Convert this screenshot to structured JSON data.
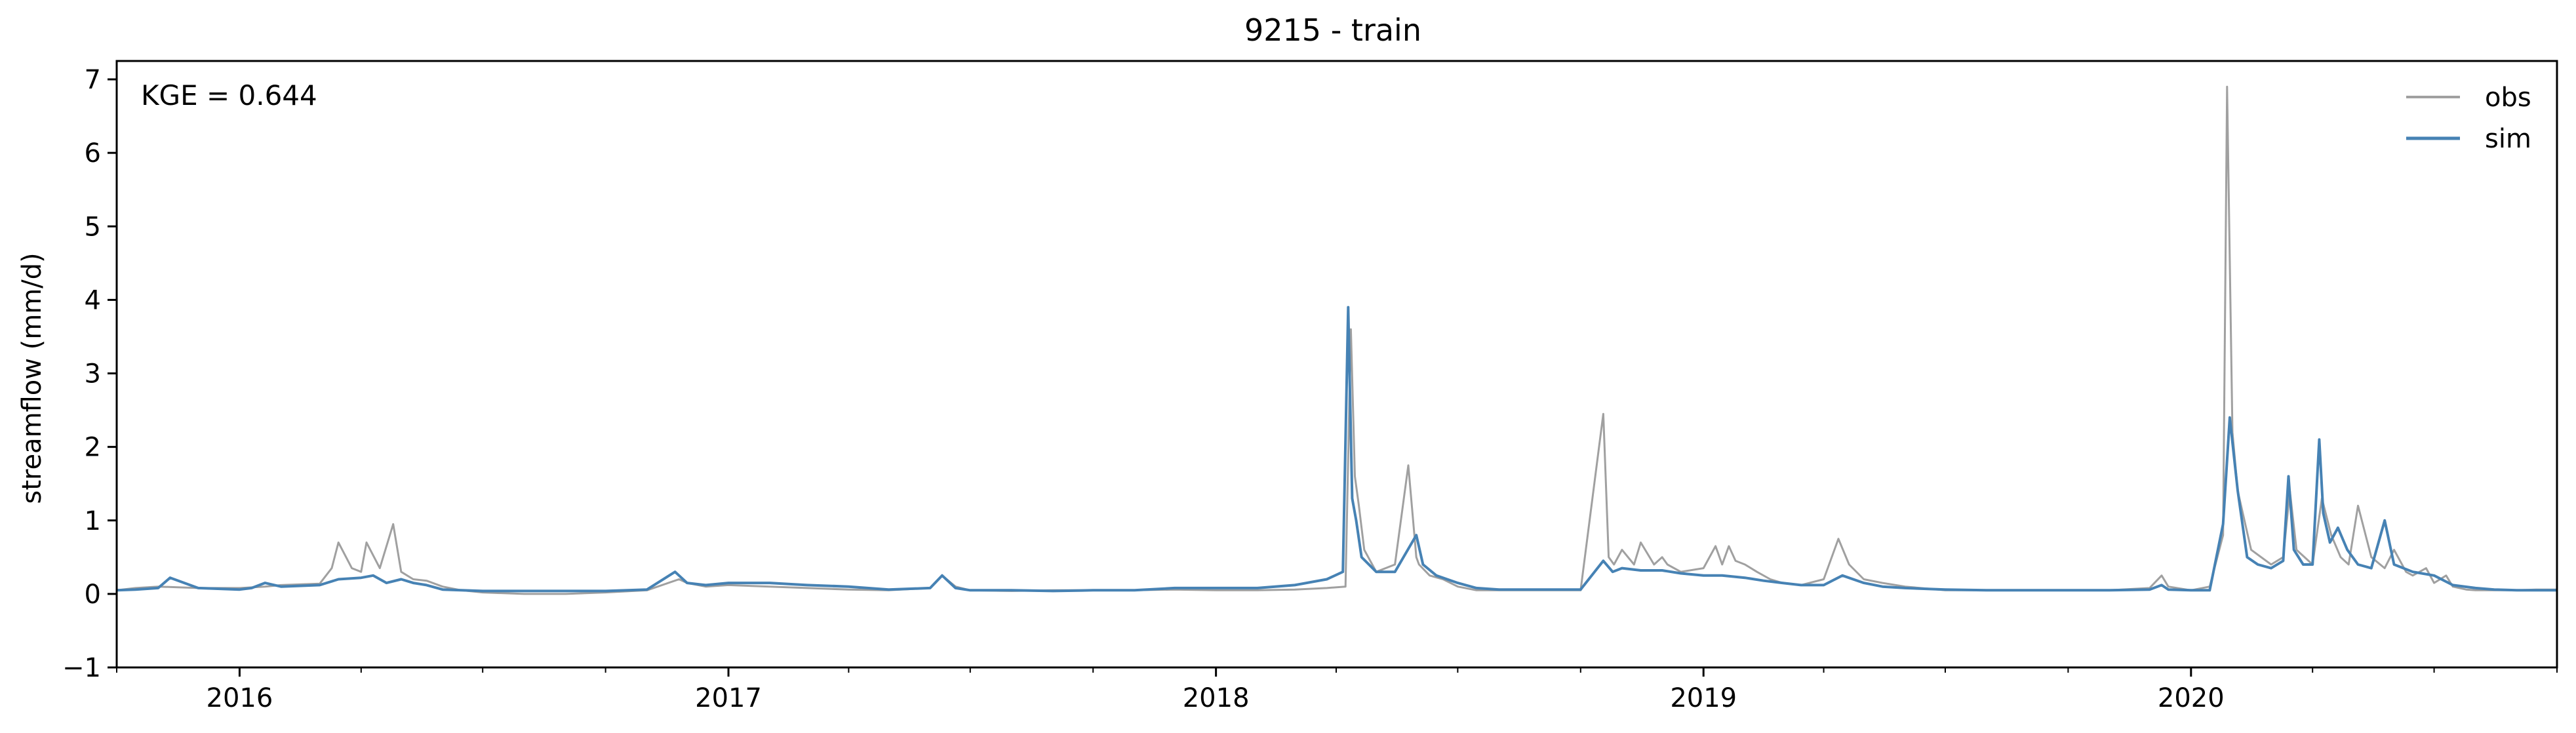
{
  "chart_data": {
    "type": "line",
    "title": "9215 - train",
    "xlabel": "",
    "ylabel": "streamflow (mm/d)",
    "annotation": "KGE = 0.644",
    "xlim": [
      "2015-10-01",
      "2020-10-01"
    ],
    "ylim": [
      -1,
      7.25
    ],
    "yticks": [
      -1,
      0,
      1,
      2,
      3,
      4,
      5,
      6,
      7
    ],
    "xticks": [
      "2016",
      "2017",
      "2018",
      "2019",
      "2020"
    ],
    "grid": false,
    "legend_position": "top-right",
    "series": [
      {
        "name": "obs",
        "color": "#a0a0a0",
        "x": [
          "2015-10-01",
          "2015-10-15",
          "2015-11-01",
          "2015-12-01",
          "2016-01-01",
          "2016-01-20",
          "2016-02-01",
          "2016-03-01",
          "2016-03-10",
          "2016-03-15",
          "2016-03-25",
          "2016-04-01",
          "2016-04-05",
          "2016-04-15",
          "2016-04-25",
          "2016-05-01",
          "2016-05-10",
          "2016-05-20",
          "2016-06-01",
          "2016-06-15",
          "2016-07-01",
          "2016-08-01",
          "2016-09-01",
          "2016-10-01",
          "2016-11-01",
          "2016-11-25",
          "2016-12-01",
          "2016-12-15",
          "2017-01-01",
          "2017-02-01",
          "2017-03-01",
          "2017-04-01",
          "2017-05-01",
          "2017-06-01",
          "2017-06-10",
          "2017-06-20",
          "2017-07-01",
          "2017-08-01",
          "2017-09-01",
          "2017-10-01",
          "2017-11-01",
          "2017-12-01",
          "2018-01-01",
          "2018-02-01",
          "2018-03-01",
          "2018-03-25",
          "2018-04-08",
          "2018-04-12",
          "2018-04-15",
          "2018-04-18",
          "2018-04-22",
          "2018-05-01",
          "2018-05-15",
          "2018-05-25",
          "2018-05-31",
          "2018-06-02",
          "2018-06-10",
          "2018-06-20",
          "2018-07-01",
          "2018-07-15",
          "2018-08-01",
          "2018-09-01",
          "2018-10-01",
          "2018-10-18",
          "2018-10-22",
          "2018-10-26",
          "2018-11-01",
          "2018-11-10",
          "2018-11-15",
          "2018-11-25",
          "2018-12-01",
          "2018-12-05",
          "2018-12-15",
          "2019-01-01",
          "2019-01-10",
          "2019-01-15",
          "2019-01-20",
          "2019-01-25",
          "2019-02-01",
          "2019-02-10",
          "2019-02-20",
          "2019-03-01",
          "2019-03-15",
          "2019-04-01",
          "2019-04-12",
          "2019-04-20",
          "2019-05-01",
          "2019-05-15",
          "2019-06-01",
          "2019-07-01",
          "2019-08-01",
          "2019-09-01",
          "2019-10-01",
          "2019-11-01",
          "2019-12-01",
          "2019-12-10",
          "2019-12-15",
          "2020-01-01",
          "2020-01-15",
          "2020-01-25",
          "2020-01-28",
          "2020-02-01",
          "2020-02-05",
          "2020-02-15",
          "2020-03-01",
          "2020-03-10",
          "2020-03-15",
          "2020-03-20",
          "2020-04-01",
          "2020-04-08",
          "2020-04-15",
          "2020-04-22",
          "2020-04-28",
          "2020-05-05",
          "2020-05-15",
          "2020-05-25",
          "2020-06-01",
          "2020-06-10",
          "2020-06-15",
          "2020-06-25",
          "2020-07-01",
          "2020-07-10",
          "2020-07-15",
          "2020-07-25",
          "2020-08-01",
          "2020-08-15",
          "2020-09-01",
          "2020-09-15",
          "2020-10-01"
        ],
        "values": [
          0.05,
          0.08,
          0.1,
          0.08,
          0.08,
          0.1,
          0.12,
          0.14,
          0.35,
          0.7,
          0.35,
          0.3,
          0.7,
          0.35,
          0.95,
          0.3,
          0.2,
          0.18,
          0.1,
          0.05,
          0.02,
          0.0,
          0.0,
          0.02,
          0.05,
          0.2,
          0.15,
          0.1,
          0.12,
          0.1,
          0.08,
          0.06,
          0.05,
          0.08,
          0.25,
          0.1,
          0.05,
          0.04,
          0.05,
          0.05,
          0.05,
          0.06,
          0.05,
          0.05,
          0.06,
          0.08,
          0.1,
          3.6,
          1.6,
          1.2,
          0.6,
          0.3,
          0.4,
          1.75,
          0.5,
          0.4,
          0.25,
          0.2,
          0.1,
          0.05,
          0.05,
          0.05,
          0.05,
          2.45,
          0.5,
          0.4,
          0.6,
          0.4,
          0.7,
          0.4,
          0.5,
          0.4,
          0.3,
          0.35,
          0.65,
          0.4,
          0.65,
          0.45,
          0.4,
          0.3,
          0.2,
          0.15,
          0.12,
          0.2,
          0.75,
          0.4,
          0.2,
          0.15,
          0.1,
          0.05,
          0.05,
          0.05,
          0.05,
          0.05,
          0.08,
          0.25,
          0.1,
          0.05,
          0.1,
          0.8,
          6.9,
          2.2,
          1.4,
          0.6,
          0.4,
          0.5,
          1.4,
          0.6,
          0.4,
          1.3,
          0.8,
          0.5,
          0.4,
          1.2,
          0.5,
          0.35,
          0.6,
          0.3,
          0.25,
          0.35,
          0.15,
          0.25,
          0.1,
          0.06,
          0.05,
          0.05,
          0.05,
          0.06,
          0.06
        ]
      },
      {
        "name": "sim",
        "color": "#4682b4",
        "x": [
          "2015-10-01",
          "2015-10-15",
          "2015-11-01",
          "2015-11-10",
          "2015-12-01",
          "2016-01-01",
          "2016-01-10",
          "2016-01-20",
          "2016-02-01",
          "2016-03-01",
          "2016-03-15",
          "2016-04-01",
          "2016-04-10",
          "2016-04-20",
          "2016-05-01",
          "2016-05-10",
          "2016-05-20",
          "2016-06-01",
          "2016-07-01",
          "2016-08-01",
          "2016-09-01",
          "2016-10-01",
          "2016-11-01",
          "2016-11-22",
          "2016-12-01",
          "2016-12-15",
          "2017-01-01",
          "2017-02-01",
          "2017-03-01",
          "2017-04-01",
          "2017-05-01",
          "2017-06-01",
          "2017-06-10",
          "2017-06-20",
          "2017-07-01",
          "2017-08-01",
          "2017-09-01",
          "2017-10-01",
          "2017-11-01",
          "2017-12-01",
          "2018-01-01",
          "2018-02-01",
          "2018-03-01",
          "2018-03-25",
          "2018-04-06",
          "2018-04-10",
          "2018-04-13",
          "2018-04-16",
          "2018-04-20",
          "2018-05-01",
          "2018-05-15",
          "2018-05-31",
          "2018-06-05",
          "2018-06-15",
          "2018-07-01",
          "2018-07-15",
          "2018-08-01",
          "2018-09-01",
          "2018-10-01",
          "2018-10-18",
          "2018-10-25",
          "2018-11-01",
          "2018-11-15",
          "2018-12-01",
          "2018-12-15",
          "2019-01-01",
          "2019-01-15",
          "2019-02-01",
          "2019-02-15",
          "2019-03-01",
          "2019-03-15",
          "2019-04-01",
          "2019-04-15",
          "2019-05-01",
          "2019-05-15",
          "2019-06-01",
          "2019-07-01",
          "2019-08-01",
          "2019-09-01",
          "2019-10-01",
          "2019-11-01",
          "2019-12-01",
          "2019-12-10",
          "2019-12-15",
          "2020-01-01",
          "2020-01-15",
          "2020-01-25",
          "2020-01-30",
          "2020-02-05",
          "2020-02-12",
          "2020-02-20",
          "2020-03-01",
          "2020-03-10",
          "2020-03-14",
          "2020-03-18",
          "2020-03-25",
          "2020-04-01",
          "2020-04-06",
          "2020-04-09",
          "2020-04-14",
          "2020-04-20",
          "2020-04-27",
          "2020-05-05",
          "2020-05-15",
          "2020-05-25",
          "2020-06-01",
          "2020-06-15",
          "2020-07-01",
          "2020-07-15",
          "2020-08-01",
          "2020-08-15",
          "2020-09-01",
          "2020-09-15",
          "2020-10-01"
        ],
        "values": [
          0.05,
          0.06,
          0.08,
          0.22,
          0.08,
          0.06,
          0.08,
          0.15,
          0.1,
          0.12,
          0.2,
          0.22,
          0.25,
          0.15,
          0.2,
          0.15,
          0.12,
          0.06,
          0.04,
          0.04,
          0.04,
          0.04,
          0.06,
          0.3,
          0.15,
          0.12,
          0.15,
          0.15,
          0.12,
          0.1,
          0.06,
          0.08,
          0.25,
          0.08,
          0.05,
          0.05,
          0.04,
          0.05,
          0.05,
          0.08,
          0.08,
          0.08,
          0.12,
          0.2,
          0.3,
          3.9,
          1.3,
          1.0,
          0.5,
          0.3,
          0.3,
          0.8,
          0.4,
          0.25,
          0.15,
          0.08,
          0.06,
          0.06,
          0.06,
          0.45,
          0.3,
          0.35,
          0.32,
          0.32,
          0.28,
          0.25,
          0.25,
          0.22,
          0.18,
          0.15,
          0.12,
          0.12,
          0.25,
          0.15,
          0.1,
          0.08,
          0.06,
          0.05,
          0.05,
          0.05,
          0.05,
          0.06,
          0.12,
          0.06,
          0.05,
          0.05,
          0.95,
          2.4,
          1.4,
          0.5,
          0.4,
          0.35,
          0.45,
          1.6,
          0.6,
          0.4,
          0.4,
          2.1,
          1.1,
          0.7,
          0.9,
          0.6,
          0.4,
          0.35,
          1.0,
          0.4,
          0.3,
          0.25,
          0.12,
          0.08,
          0.06,
          0.05,
          0.05,
          0.05
        ]
      }
    ]
  }
}
